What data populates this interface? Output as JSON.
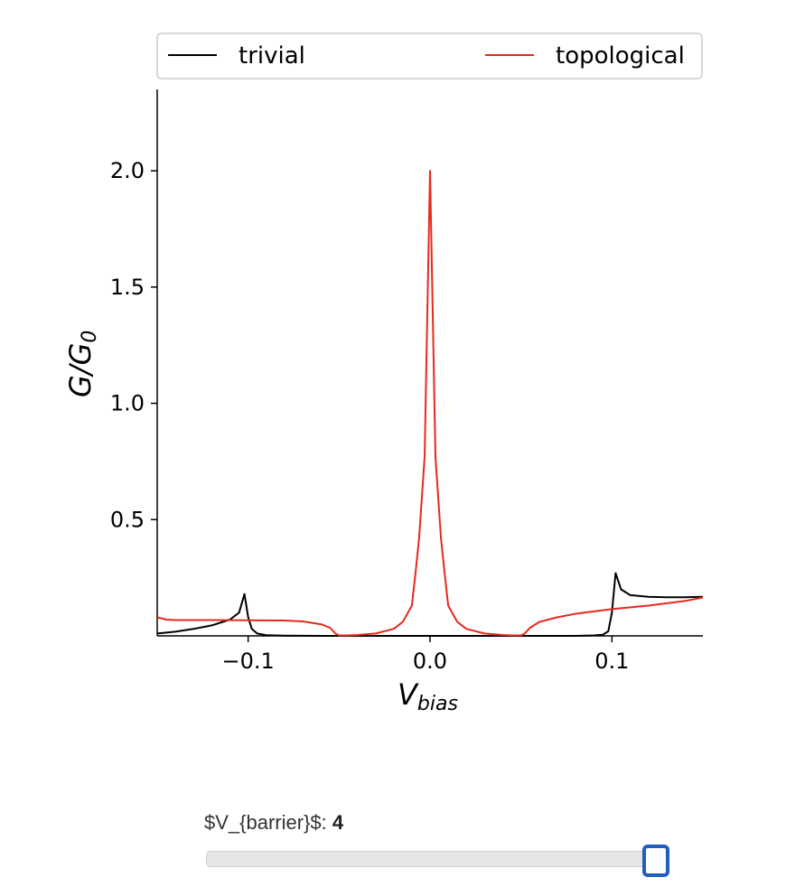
{
  "chart_data": {
    "type": "line",
    "xlabel": "V",
    "xlabel_sub": "bias",
    "ylabel": "G/G",
    "ylabel_sub": "0",
    "xlim": [
      -0.15,
      0.15
    ],
    "ylim": [
      0,
      2.35
    ],
    "xticks": [
      -0.1,
      0.0,
      0.1
    ],
    "xtick_labels": [
      "−0.1",
      "0.0",
      "0.1"
    ],
    "yticks": [
      0.5,
      1.0,
      1.5,
      2.0
    ],
    "ytick_labels": [
      "0.5",
      "1.0",
      "1.5",
      "2.0"
    ],
    "grid": false,
    "legend_position": "top",
    "series": [
      {
        "name": "trivial",
        "color": "#000000",
        "x": [
          -0.15,
          -0.14,
          -0.13,
          -0.12,
          -0.11,
          -0.105,
          -0.102,
          -0.1,
          -0.098,
          -0.095,
          -0.09,
          -0.08,
          -0.06,
          -0.05,
          -0.04,
          0.0,
          0.04,
          0.06,
          0.08,
          0.09,
          0.095,
          0.098,
          0.1,
          0.102,
          0.105,
          0.11,
          0.12,
          0.13,
          0.14,
          0.15
        ],
        "y": [
          0.01,
          0.018,
          0.03,
          0.045,
          0.07,
          0.1,
          0.18,
          0.08,
          0.03,
          0.01,
          0.003,
          0.001,
          0.0,
          0.0,
          0.0,
          0.0,
          0.0,
          0.0,
          0.0,
          0.002,
          0.005,
          0.02,
          0.1,
          0.27,
          0.2,
          0.175,
          0.168,
          0.166,
          0.166,
          0.168
        ]
      },
      {
        "name": "topological",
        "color": "#e8291c",
        "x": [
          -0.15,
          -0.145,
          -0.14,
          -0.12,
          -0.1,
          -0.08,
          -0.07,
          -0.06,
          -0.055,
          -0.052,
          -0.05,
          -0.045,
          -0.04,
          -0.03,
          -0.02,
          -0.015,
          -0.01,
          -0.008,
          -0.006,
          -0.003,
          0.0,
          0.003,
          0.006,
          0.008,
          0.01,
          0.015,
          0.02,
          0.03,
          0.04,
          0.045,
          0.05,
          0.052,
          0.055,
          0.06,
          0.07,
          0.08,
          0.1,
          0.12,
          0.14,
          0.15
        ],
        "y": [
          0.08,
          0.07,
          0.068,
          0.068,
          0.067,
          0.066,
          0.062,
          0.05,
          0.035,
          0.01,
          0.002,
          0.002,
          0.004,
          0.01,
          0.03,
          0.06,
          0.13,
          0.27,
          0.42,
          0.77,
          2.0,
          0.77,
          0.42,
          0.27,
          0.13,
          0.06,
          0.03,
          0.01,
          0.004,
          0.002,
          0.002,
          0.01,
          0.035,
          0.06,
          0.08,
          0.095,
          0.115,
          0.13,
          0.15,
          0.165
        ]
      }
    ]
  },
  "slider": {
    "label": "$V_{barrier}$: ",
    "value": "4",
    "fraction": 1.0
  }
}
